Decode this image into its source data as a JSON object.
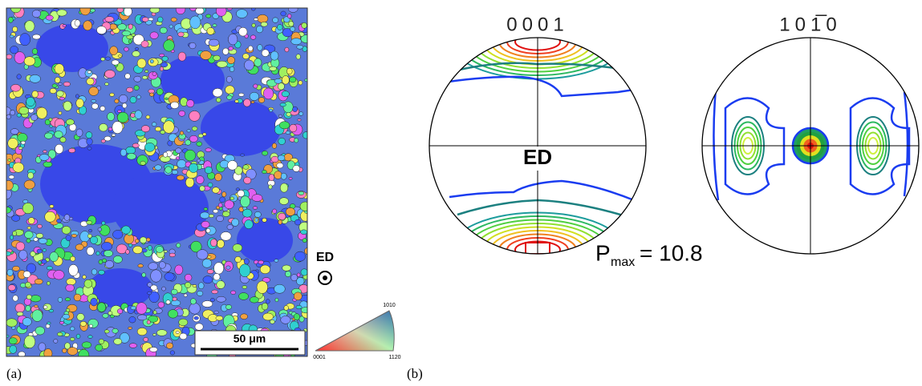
{
  "panel_a": {
    "label": "(a)",
    "scale_bar": "50 μm",
    "direction": "ED",
    "ipf_key": {
      "top": "1010",
      "left": "0001",
      "right": "1120"
    }
  },
  "panel_b": {
    "label": "(b)",
    "pole_figures": [
      {
        "title": "0001",
        "direction": "ED"
      },
      {
        "title": "101̅0"
      }
    ],
    "pmax": {
      "symbol": "P",
      "subscript": "max",
      "text": "= 10.8"
    }
  }
}
